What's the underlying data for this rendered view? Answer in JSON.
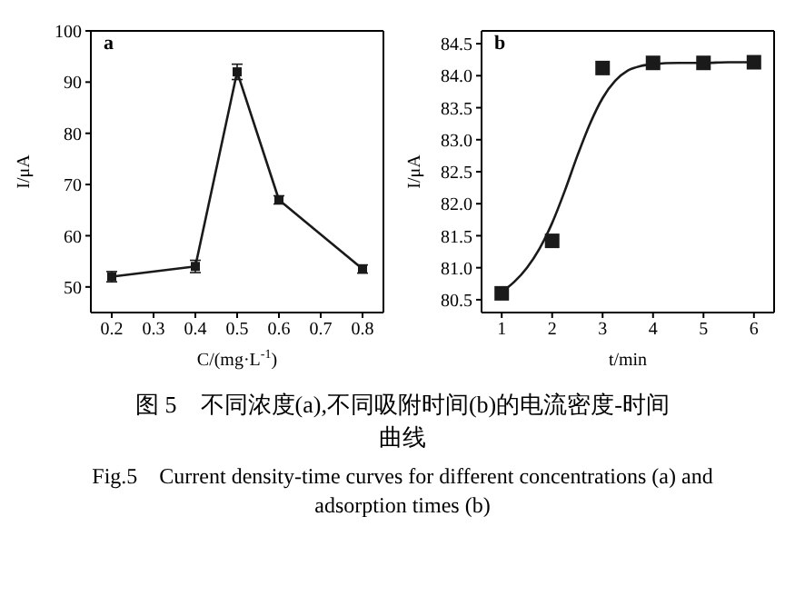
{
  "chart_data": [
    {
      "type": "line",
      "x": [
        0.2,
        0.4,
        0.5,
        0.6,
        0.8
      ],
      "xlim": [
        0.15,
        0.85
      ],
      "xticks": [
        0.2,
        0.3,
        0.4,
        0.5,
        0.6,
        0.7,
        0.8
      ],
      "ylim": [
        45,
        100
      ],
      "yticks": [
        50,
        60,
        70,
        80,
        90,
        100
      ],
      "xlabel": "C/(mg·L$^{-1}$)",
      "ylabel": "I/μA",
      "marker": "square",
      "grid": false,
      "legend": false,
      "annotations": [
        "a"
      ],
      "series": [
        {
          "color": "#1a1a1a",
          "values": [
            52,
            54,
            92,
            67,
            53.5
          ],
          "errors": [
            1,
            1.2,
            1.5,
            0.8,
            0.8
          ]
        }
      ]
    },
    {
      "type": "scatter",
      "xlim": [
        0.6,
        6.4
      ],
      "xticks": [
        1,
        2,
        3,
        4,
        5,
        6
      ],
      "ylim": [
        80.3,
        84.7
      ],
      "yticks": [
        {
          "value": 80.5,
          "label": "80.5"
        },
        {
          "value": 81,
          "label": "81.0"
        },
        {
          "value": 81.5,
          "label": "81.5"
        },
        {
          "value": 82,
          "label": "82.0"
        },
        {
          "value": 82.5,
          "label": "82.5"
        },
        {
          "value": 83,
          "label": "83.0"
        },
        {
          "value": 83.5,
          "label": "83.5"
        },
        {
          "value": 84,
          "label": "84.0"
        },
        {
          "value": 84.5,
          "label": "84.5"
        }
      ],
      "xlabel": "t/min",
      "ylabel": "I/μA",
      "marker": "square",
      "grid": false,
      "legend": false,
      "annotations": [
        "b"
      ],
      "series": [
        {
          "type": "scatter",
          "color": "#1a1a1a",
          "x": [
            1,
            2,
            3,
            4,
            5,
            6
          ],
          "values": [
            80.6,
            81.42,
            84.12,
            84.2,
            84.2,
            84.21
          ],
          "errors": [
            0.04,
            0.06,
            0.07,
            0.05,
            0.04,
            0.05
          ]
        },
        {
          "type": "line",
          "marker": "none",
          "color": "#1a1a1a",
          "x": [
            1,
            1.25,
            1.5,
            1.75,
            2,
            2.25,
            2.5,
            2.75,
            3,
            3.25,
            3.5,
            3.75,
            4,
            4.5,
            5,
            5.5,
            6
          ],
          "values": [
            80.62,
            80.78,
            81.0,
            81.3,
            81.7,
            82.2,
            82.75,
            83.25,
            83.65,
            83.92,
            84.08,
            84.15,
            84.18,
            84.2,
            84.2,
            84.21,
            84.21
          ]
        }
      ]
    },
    {
      "type": "other",
      "annotations": [
        "图 5　不同浓度(a),不同吸附时间(b)的电流密度-时间曲线",
        "Fig.5　Current density-time curves for different concentrations (a) and adsorption times (b)"
      ]
    }
  ]
}
